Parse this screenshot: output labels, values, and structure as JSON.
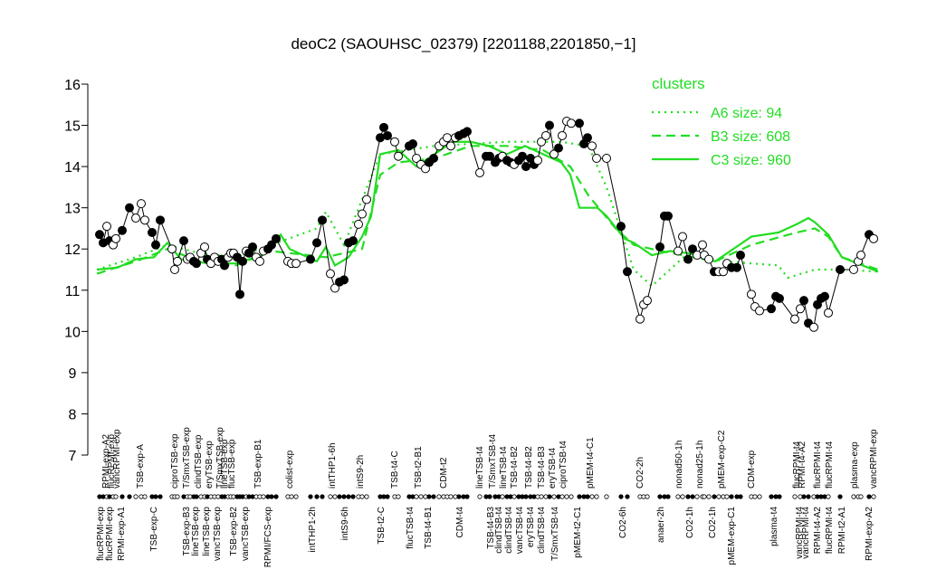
{
  "chart_data": {
    "type": "line",
    "title": "deoC2 (SAOUHSC_02379) [2201188,2201850,−1]",
    "ylim": [
      7,
      16
    ],
    "yticks": [
      7,
      8,
      9,
      10,
      11,
      12,
      13,
      14,
      15,
      16
    ],
    "xlim": [
      0,
      863
    ],
    "legend_title": "clusters",
    "legend_position": "top-right",
    "points": {
      "x": [
        3,
        7,
        11,
        14,
        18,
        21,
        28,
        36,
        43,
        49,
        53,
        61,
        65,
        70,
        83,
        86,
        89,
        96,
        100,
        103,
        107,
        110,
        115,
        119,
        122,
        126,
        130,
        134,
        138,
        141,
        145,
        148,
        151,
        155,
        158,
        161,
        165,
        168,
        172,
        176,
        180,
        184,
        189,
        193,
        198,
        211,
        215,
        220,
        236,
        243,
        249,
        258,
        263,
        268,
        273,
        278,
        283,
        289,
        293,
        298,
        313,
        317,
        321,
        329,
        333,
        345,
        349,
        353,
        358,
        363,
        367,
        372,
        378,
        383,
        387,
        391,
        396,
        400,
        405,
        409,
        423,
        430,
        434,
        440,
        444,
        448,
        453,
        457,
        461,
        466,
        470,
        474,
        479,
        483,
        487,
        491,
        496,
        500,
        505,
        510,
        514,
        519,
        524,
        533,
        538,
        542,
        547,
        552,
        563,
        579,
        586,
        600,
        604,
        608,
        622,
        627,
        631,
        642,
        647,
        653,
        658,
        663,
        669,
        671,
        676,
        682,
        687,
        692,
        696,
        701,
        707,
        711,
        723,
        727,
        732,
        745,
        750,
        754,
        771,
        777,
        781,
        786,
        792,
        796,
        800,
        804,
        808,
        821,
        836,
        841,
        844,
        853,
        858
      ],
      "values": [
        12.35,
        12.15,
        12.55,
        12.2,
        12.1,
        12.25,
        12.45,
        13.0,
        12.75,
        13.1,
        12.7,
        12.4,
        12.1,
        12.7,
        12.0,
        11.5,
        11.7,
        12.2,
        11.75,
        11.8,
        11.7,
        11.65,
        11.9,
        12.05,
        11.75,
        11.65,
        11.8,
        11.7,
        11.75,
        11.6,
        11.8,
        11.9,
        11.9,
        11.8,
        10.9,
        11.7,
        11.95,
        11.9,
        12.05,
        11.8,
        11.7,
        11.95,
        12.0,
        12.1,
        12.25,
        11.7,
        11.65,
        11.65,
        11.75,
        12.15,
        12.7,
        11.4,
        11.05,
        11.2,
        11.25,
        12.15,
        12.2,
        12.6,
        12.85,
        13.2,
        14.7,
        14.95,
        14.75,
        14.6,
        14.25,
        14.5,
        14.55,
        14.2,
        14.05,
        13.95,
        14.1,
        14.2,
        14.5,
        14.6,
        14.7,
        14.5,
        14.7,
        14.75,
        14.8,
        14.85,
        13.85,
        14.25,
        14.25,
        14.1,
        14.2,
        14.25,
        14.15,
        14.1,
        14.05,
        14.15,
        14.25,
        14.0,
        14.2,
        14.05,
        14.15,
        14.6,
        14.75,
        15.0,
        14.3,
        14.45,
        14.75,
        15.1,
        15.05,
        15.05,
        14.55,
        14.7,
        14.5,
        14.2,
        14.2,
        12.55,
        11.45,
        10.3,
        10.65,
        10.75,
        12.05,
        12.8,
        12.8,
        11.95,
        12.3,
        11.75,
        12.0,
        11.85,
        12.1,
        11.85,
        11.75,
        11.45,
        11.45,
        11.45,
        11.65,
        11.55,
        11.55,
        11.85,
        10.9,
        10.6,
        10.5,
        10.55,
        10.85,
        10.8,
        10.3,
        10.55,
        10.75,
        10.2,
        10.1,
        10.65,
        10.8,
        10.85,
        10.45,
        11.5,
        11.5,
        11.7,
        11.85,
        12.35,
        12.25
      ],
      "filled": [
        true,
        true,
        false,
        true,
        false,
        false,
        true,
        true,
        false,
        false,
        false,
        true,
        true,
        true,
        false,
        false,
        false,
        true,
        false,
        false,
        true,
        true,
        false,
        false,
        true,
        false,
        false,
        false,
        true,
        true,
        false,
        false,
        false,
        true,
        true,
        true,
        false,
        true,
        true,
        false,
        false,
        false,
        true,
        true,
        true,
        false,
        false,
        false,
        true,
        true,
        true,
        false,
        false,
        true,
        true,
        true,
        true,
        false,
        false,
        false,
        true,
        true,
        true,
        false,
        false,
        true,
        true,
        false,
        false,
        false,
        true,
        true,
        false,
        false,
        false,
        false,
        false,
        true,
        true,
        true,
        false,
        true,
        true,
        true,
        true,
        false,
        true,
        true,
        false,
        true,
        true,
        true,
        true,
        true,
        false,
        false,
        false,
        true,
        false,
        true,
        false,
        false,
        false,
        true,
        true,
        true,
        false,
        false,
        false,
        true,
        true,
        false,
        false,
        false,
        true,
        true,
        true,
        false,
        false,
        true,
        true,
        false,
        false,
        false,
        false,
        true,
        false,
        false,
        false,
        true,
        true,
        true,
        false,
        false,
        false,
        true,
        true,
        true,
        false,
        false,
        true,
        true,
        false,
        true,
        true,
        true,
        false,
        true,
        false,
        false,
        false,
        true,
        false
      ]
    },
    "series": [
      {
        "name": "A6 size: 94",
        "color": "#22dd22",
        "dash": "dotted",
        "x": [
          0,
          43,
          78,
          113,
          153,
          193,
          243,
          253,
          273,
          313,
          373,
          453,
          513,
          543,
          563,
          593,
          613,
          653,
          693,
          753,
          763,
          793,
          823,
          863
        ],
        "values": [
          11.5,
          11.8,
          12.1,
          11.9,
          11.8,
          12.1,
          12.5,
          12.9,
          12.1,
          14.3,
          14.5,
          14.6,
          14.6,
          14.5,
          13.5,
          11.5,
          11.1,
          11.9,
          11.7,
          11.6,
          11.3,
          11.5,
          11.5,
          11.45
        ]
      },
      {
        "name": "B3 size: 608",
        "color": "#22dd22",
        "dash": "dashed",
        "x": [
          0,
          43,
          78,
          113,
          153,
          193,
          213,
          253,
          293,
          313,
          333,
          373,
          413,
          453,
          493,
          523,
          543,
          573,
          593,
          623,
          683,
          723,
          773,
          793,
          808,
          823,
          863
        ],
        "values": [
          11.4,
          11.7,
          12.0,
          11.7,
          11.6,
          11.95,
          11.9,
          11.8,
          12.0,
          13.8,
          14.1,
          14.2,
          14.5,
          14.5,
          14.4,
          14.0,
          13.3,
          12.5,
          12.1,
          11.95,
          11.7,
          12.1,
          12.4,
          12.5,
          12.3,
          11.8,
          11.5
        ]
      },
      {
        "name": "C3 size: 960",
        "color": "#22dd22",
        "dash": "solid",
        "x": [
          0,
          23,
          43,
          63,
          78,
          93,
          123,
          153,
          183,
          203,
          213,
          243,
          253,
          263,
          278,
          293,
          303,
          313,
          333,
          353,
          373,
          393,
          413,
          433,
          453,
          473,
          493,
          513,
          523,
          533,
          553,
          563,
          583,
          593,
          613,
          633,
          653,
          683,
          703,
          723,
          753,
          773,
          786,
          793,
          808,
          823,
          863
        ],
        "values": [
          11.5,
          11.55,
          11.75,
          11.8,
          12.15,
          11.75,
          11.65,
          11.65,
          11.85,
          12.35,
          12.0,
          11.7,
          12.05,
          11.6,
          11.8,
          12.3,
          12.8,
          14.3,
          14.4,
          14.0,
          14.3,
          14.6,
          14.6,
          14.5,
          14.3,
          14.5,
          14.3,
          14.1,
          13.8,
          13.0,
          13.0,
          12.8,
          12.25,
          12.15,
          11.85,
          11.95,
          11.9,
          11.7,
          12.0,
          12.3,
          12.4,
          12.6,
          12.75,
          12.65,
          12.35,
          11.8,
          11.45
        ]
      }
    ],
    "x_labels_top": [
      {
        "value": 10,
        "label": "RPMI-exp-A2"
      },
      {
        "value": 16,
        "label": "flucRPMI-exp"
      },
      {
        "value": 22,
        "label": "vancRPMI-exp"
      },
      {
        "value": 48,
        "label": "TSB-exp-A"
      },
      {
        "value": 86,
        "label": "ciproTSB-exp"
      },
      {
        "value": 99,
        "label": "T/SmxTSB-exp"
      },
      {
        "value": 112,
        "label": "clindTSB-exp"
      },
      {
        "value": 124,
        "label": "eryTSB-exp"
      },
      {
        "value": 136,
        "label": "T/SmxTSB-exp"
      },
      {
        "value": 141,
        "label": "lineTSB-exp"
      },
      {
        "value": 149,
        "label": "flucTSB-exp"
      },
      {
        "value": 178,
        "label": "TSB-exp-B1"
      },
      {
        "value": 213,
        "label": "colist-exp"
      },
      {
        "value": 260,
        "label": "intTHP1-6h"
      },
      {
        "value": 291,
        "label": "intS9-2h"
      },
      {
        "value": 329,
        "label": "TSB-t4-C"
      },
      {
        "value": 355,
        "label": "TSB-t2-B1"
      },
      {
        "value": 383,
        "label": "CDM-t2"
      },
      {
        "value": 423,
        "label": "lineTSB-t4"
      },
      {
        "value": 437,
        "label": "T/SmxTSB-t4"
      },
      {
        "value": 449,
        "label": "lineTSB-t4"
      },
      {
        "value": 461,
        "label": "TSB-t4-B2"
      },
      {
        "value": 477,
        "label": "TSB-t4-B2"
      },
      {
        "value": 491,
        "label": "TSB-t4-B3"
      },
      {
        "value": 503,
        "label": "eryTSB-t4"
      },
      {
        "value": 515,
        "label": "ciproTSB-t4"
      },
      {
        "value": 545,
        "label": "pMEM-t4-C1"
      },
      {
        "value": 600,
        "label": "CO2-2h"
      },
      {
        "value": 643,
        "label": "nonad50-1h"
      },
      {
        "value": 666,
        "label": "nonad25-1h"
      },
      {
        "value": 690,
        "label": "pMEM-exp-C2"
      },
      {
        "value": 723,
        "label": "CDM-exp"
      },
      {
        "value": 773,
        "label": "flucRPMI-t4"
      },
      {
        "value": 779,
        "label": "RPMI-t4-A2"
      },
      {
        "value": 796,
        "label": "flucRPMI-t4"
      },
      {
        "value": 809,
        "label": "flucRPMI-t4"
      },
      {
        "value": 837,
        "label": "plasma-exp"
      },
      {
        "value": 858,
        "label": "vancRPMI-exp"
      }
    ],
    "x_labels_bottom": [
      {
        "value": 4,
        "label": "flucRPMI-exp"
      },
      {
        "value": 14,
        "label": "flucRPMI-exp"
      },
      {
        "value": 27,
        "label": "RPMI-exp-A1"
      },
      {
        "value": 63,
        "label": "TSB-exp-C"
      },
      {
        "value": 99,
        "label": "TSB-exp-B3"
      },
      {
        "value": 109,
        "label": "lineTSB-exp"
      },
      {
        "value": 121,
        "label": "lineTSB-exp"
      },
      {
        "value": 133,
        "label": "vancTSB-exp"
      },
      {
        "value": 151,
        "label": "TSB-exp-B2"
      },
      {
        "value": 164,
        "label": "vancTSB-exp"
      },
      {
        "value": 189,
        "label": "RPMI/FCS-exp"
      },
      {
        "value": 238,
        "label": "intTHP1-2h"
      },
      {
        "value": 274,
        "label": "intS9-6h"
      },
      {
        "value": 314,
        "label": "TSB-t2-C"
      },
      {
        "value": 346,
        "label": "flucTSB-t4"
      },
      {
        "value": 366,
        "label": "TSB-t4-B1"
      },
      {
        "value": 401,
        "label": "CDM-t4"
      },
      {
        "value": 435,
        "label": "TSB-t4-B3"
      },
      {
        "value": 444,
        "label": "clindTSB-t4"
      },
      {
        "value": 455,
        "label": "clindTSB-t4"
      },
      {
        "value": 467,
        "label": "vancTSB-t4"
      },
      {
        "value": 479,
        "label": "eryTSB-t4"
      },
      {
        "value": 491,
        "label": "clindTSB-t4"
      },
      {
        "value": 506,
        "label": "T/SmxTSB-t4"
      },
      {
        "value": 531,
        "label": "pMEM-t2-C1"
      },
      {
        "value": 581,
        "label": "CO2-6h"
      },
      {
        "value": 623,
        "label": "anaer-2h"
      },
      {
        "value": 655,
        "label": "CO2-1h"
      },
      {
        "value": 680,
        "label": "CO2-1h"
      },
      {
        "value": 701,
        "label": "pMEM-exp-C1"
      },
      {
        "value": 748,
        "label": "plasma-t4"
      },
      {
        "value": 776,
        "label": "vancRPMI-t4"
      },
      {
        "value": 783,
        "label": "vancRPMI-t4"
      },
      {
        "value": 796,
        "label": "RPMI-t4-A2"
      },
      {
        "value": 809,
        "label": "flucRPMI-t4"
      },
      {
        "value": 823,
        "label": "RPMI-t2-A1"
      },
      {
        "value": 853,
        "label": "RPMI-exp-A2"
      }
    ]
  }
}
